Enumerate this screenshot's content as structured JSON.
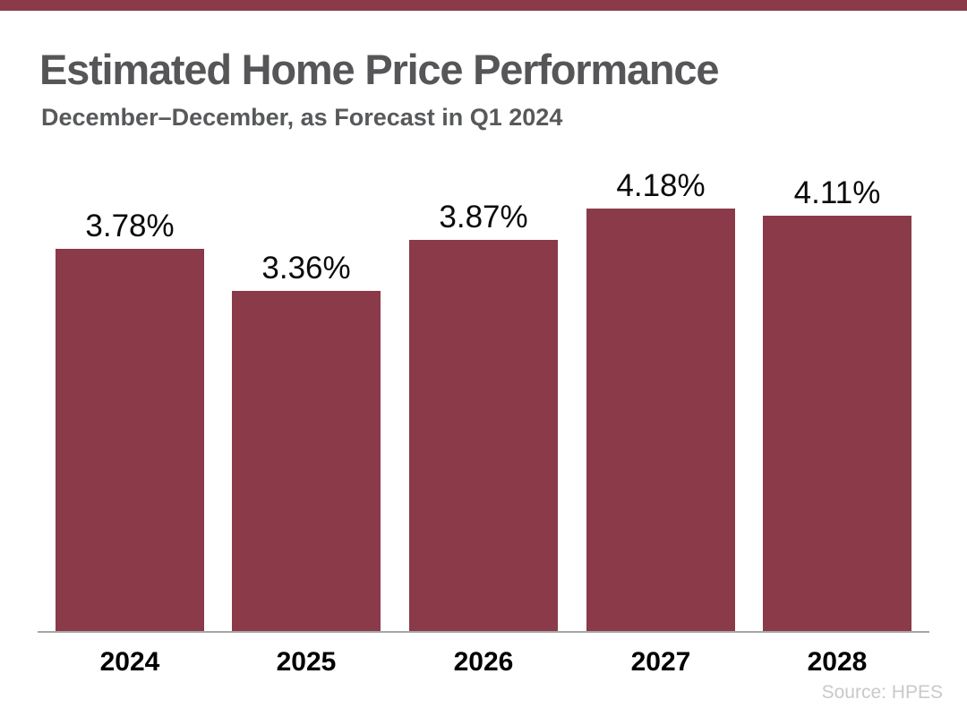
{
  "header": {
    "title": "Estimated Home Price Performance",
    "subtitle": "December–December, as Forecast in Q1 2024"
  },
  "footer": {
    "source": "Source: HPES"
  },
  "colors": {
    "accent_maroon": "#8A3A48",
    "title_gray": "#565558",
    "subtitle_gray": "#58595B",
    "axis_gray": "#A6A6A6",
    "value_label_black": "#0A0A0A",
    "year_label_black": "#000000",
    "source_light_gray": "#C9C9C9"
  },
  "chart_data": {
    "type": "bar",
    "title": "Estimated Home Price Performance",
    "subtitle": "December–December, as Forecast in Q1 2024",
    "categories": [
      "2024",
      "2025",
      "2026",
      "2027",
      "2028"
    ],
    "values": [
      3.78,
      3.36,
      3.87,
      4.18,
      4.11
    ],
    "value_labels": [
      "3.78%",
      "3.36%",
      "3.87%",
      "4.18%",
      "4.11%"
    ],
    "unit": "%",
    "xlabel": "",
    "ylabel": "",
    "ylim": [
      0,
      4.7
    ],
    "grid": false,
    "legend": false,
    "bar_color": "#8A3A48",
    "baseline_axis": true,
    "source": "Source: HPES"
  }
}
